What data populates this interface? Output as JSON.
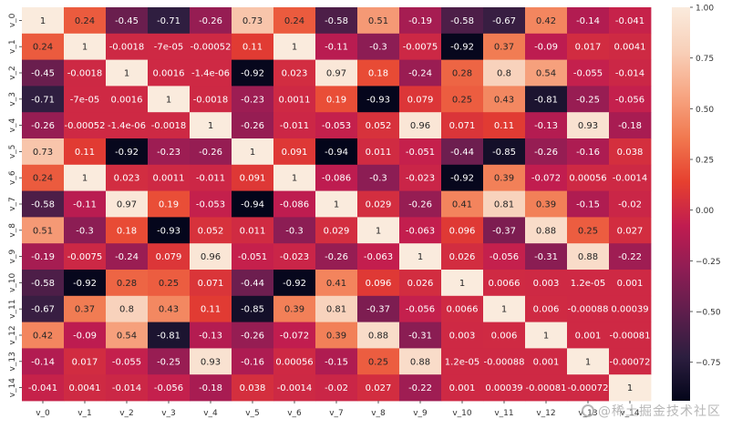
{
  "chart_data": {
    "type": "heatmap",
    "rows": [
      "v_0",
      "v_1",
      "v_2",
      "v_3",
      "v_4",
      "v_5",
      "v_6",
      "v_7",
      "v_8",
      "v_9",
      "v_10",
      "v_11",
      "v_12",
      "v_13",
      "v_14"
    ],
    "cols": [
      "v_0",
      "v_1",
      "v_2",
      "v_3",
      "v_4",
      "v_5",
      "v_6",
      "v_7",
      "v_8",
      "v_9",
      "v_10",
      "v_11",
      "v_12",
      "v_13",
      "v_14"
    ],
    "values": [
      [
        1,
        0.24,
        -0.45,
        -0.71,
        -0.26,
        0.73,
        0.24,
        -0.58,
        0.51,
        -0.19,
        -0.58,
        -0.67,
        0.42,
        -0.14,
        -0.041
      ],
      [
        0.24,
        1,
        -0.0018,
        -7e-05,
        -0.00052,
        0.11,
        1,
        -0.11,
        -0.3,
        -0.0075,
        -0.92,
        0.37,
        -0.09,
        0.017,
        0.0041
      ],
      [
        -0.45,
        -0.0018,
        1,
        0.0016,
        -1.4e-06,
        -0.92,
        0.023,
        0.97,
        0.18,
        -0.24,
        0.28,
        0.8,
        0.54,
        -0.055,
        -0.014
      ],
      [
        -0.71,
        -7e-05,
        0.0016,
        1,
        -0.0018,
        -0.23,
        0.0011,
        0.19,
        -0.93,
        0.079,
        0.25,
        0.43,
        -0.81,
        -0.25,
        -0.056
      ],
      [
        -0.26,
        -0.00052,
        -1.4e-06,
        -0.0018,
        1,
        -0.26,
        -0.011,
        -0.053,
        0.052,
        0.96,
        0.071,
        0.11,
        -0.13,
        0.93,
        -0.18
      ],
      [
        0.73,
        0.11,
        -0.92,
        -0.23,
        -0.26,
        1,
        0.091,
        -0.94,
        0.011,
        -0.051,
        -0.44,
        -0.85,
        -0.26,
        -0.16,
        0.038
      ],
      [
        0.24,
        1,
        0.023,
        0.0011,
        -0.011,
        0.091,
        1,
        -0.086,
        -0.3,
        -0.023,
        -0.92,
        0.39,
        -0.072,
        0.00056,
        -0.0014
      ],
      [
        -0.58,
        -0.11,
        0.97,
        0.19,
        -0.053,
        -0.94,
        -0.086,
        1,
        0.029,
        -0.26,
        0.41,
        0.81,
        0.39,
        -0.15,
        -0.02
      ],
      [
        0.51,
        -0.3,
        0.18,
        -0.93,
        0.052,
        0.011,
        -0.3,
        0.029,
        1,
        -0.063,
        0.096,
        -0.37,
        0.88,
        0.25,
        0.027
      ],
      [
        -0.19,
        -0.0075,
        -0.24,
        0.079,
        0.96,
        -0.051,
        -0.023,
        -0.26,
        -0.063,
        1,
        0.026,
        -0.056,
        -0.31,
        0.88,
        -0.22
      ],
      [
        -0.58,
        -0.92,
        0.28,
        0.25,
        0.071,
        -0.44,
        -0.92,
        0.41,
        0.096,
        0.026,
        1,
        0.0066,
        0.003,
        1.2e-05,
        0.001
      ],
      [
        -0.67,
        0.37,
        0.8,
        0.43,
        0.11,
        -0.85,
        0.39,
        0.81,
        -0.37,
        -0.056,
        0.0066,
        1,
        0.006,
        -0.00088,
        0.00039
      ],
      [
        0.42,
        -0.09,
        0.54,
        -0.81,
        -0.13,
        -0.26,
        -0.072,
        0.39,
        0.88,
        -0.31,
        0.003,
        0.006,
        1,
        0.001,
        -0.00081
      ],
      [
        -0.14,
        0.017,
        -0.055,
        -0.25,
        0.93,
        -0.16,
        0.00056,
        -0.15,
        0.25,
        0.88,
        1.2e-05,
        -0.00088,
        0.001,
        1,
        -0.00072
      ],
      [
        -0.041,
        0.0041,
        -0.014,
        -0.056,
        -0.18,
        0.038,
        -0.0014,
        -0.02,
        0.027,
        -0.22,
        0.001,
        0.00039,
        -0.00081,
        -0.00072,
        1
      ]
    ],
    "labels": [
      [
        "1",
        "0.24",
        "-0.45",
        "-0.71",
        "-0.26",
        "0.73",
        "0.24",
        "-0.58",
        "0.51",
        "-0.19",
        "-0.58",
        "-0.67",
        "0.42",
        "-0.14",
        "-0.041"
      ],
      [
        "0.24",
        "1",
        "-0.0018",
        "-7e-05",
        "-0.00052",
        "0.11",
        "1",
        "-0.11",
        "-0.3",
        "-0.0075",
        "-0.92",
        "0.37",
        "-0.09",
        "0.017",
        "0.0041"
      ],
      [
        "-0.45",
        "-0.0018",
        "1",
        "0.0016",
        "-1.4e-06",
        "-0.92",
        "0.023",
        "0.97",
        "0.18",
        "-0.24",
        "0.28",
        "0.8",
        "0.54",
        "-0.055",
        "-0.014"
      ],
      [
        "-0.71",
        "-7e-05",
        "0.0016",
        "1",
        "-0.0018",
        "-0.23",
        "0.0011",
        "0.19",
        "-0.93",
        "0.079",
        "0.25",
        "0.43",
        "-0.81",
        "-0.25",
        "-0.056"
      ],
      [
        "-0.26",
        "-0.00052",
        "-1.4e-06",
        "-0.0018",
        "1",
        "-0.26",
        "-0.011",
        "-0.053",
        "0.052",
        "0.96",
        "0.071",
        "0.11",
        "-0.13",
        "0.93",
        "-0.18"
      ],
      [
        "0.73",
        "0.11",
        "-0.92",
        "-0.23",
        "-0.26",
        "1",
        "0.091",
        "-0.94",
        "0.011",
        "-0.051",
        "-0.44",
        "-0.85",
        "-0.26",
        "-0.16",
        "0.038"
      ],
      [
        "0.24",
        "1",
        "0.023",
        "0.0011",
        "-0.011",
        "0.091",
        "1",
        "-0.086",
        "-0.3",
        "-0.023",
        "-0.92",
        "0.39",
        "-0.072",
        "0.00056",
        "-0.0014"
      ],
      [
        "-0.58",
        "-0.11",
        "0.97",
        "0.19",
        "-0.053",
        "-0.94",
        "-0.086",
        "1",
        "0.029",
        "-0.26",
        "0.41",
        "0.81",
        "0.39",
        "-0.15",
        "-0.02"
      ],
      [
        "0.51",
        "-0.3",
        "0.18",
        "-0.93",
        "0.052",
        "0.011",
        "-0.3",
        "0.029",
        "1",
        "-0.063",
        "0.096",
        "-0.37",
        "0.88",
        "0.25",
        "0.027"
      ],
      [
        "-0.19",
        "-0.0075",
        "-0.24",
        "0.079",
        "0.96",
        "-0.051",
        "-0.023",
        "-0.26",
        "-0.063",
        "1",
        "0.026",
        "-0.056",
        "-0.31",
        "0.88",
        "-0.22"
      ],
      [
        "-0.58",
        "-0.92",
        "0.28",
        "0.25",
        "0.071",
        "-0.44",
        "-0.92",
        "0.41",
        "0.096",
        "0.026",
        "1",
        "0.0066",
        "0.003",
        "1.2e-05",
        "0.001"
      ],
      [
        "-0.67",
        "0.37",
        "0.8",
        "0.43",
        "0.11",
        "-0.85",
        "0.39",
        "0.81",
        "-0.37",
        "-0.056",
        "0.0066",
        "1",
        "0.006",
        "-0.00088",
        "0.00039"
      ],
      [
        "0.42",
        "-0.09",
        "0.54",
        "-0.81",
        "-0.13",
        "-0.26",
        "-0.072",
        "0.39",
        "0.88",
        "-0.31",
        "0.003",
        "0.006",
        "1",
        "0.001",
        "-0.00081"
      ],
      [
        "-0.14",
        "0.017",
        "-0.055",
        "-0.25",
        "0.93",
        "-0.16",
        "0.00056",
        "-0.15",
        "0.25",
        "0.88",
        "1.2e-05",
        "-0.00088",
        "0.001",
        "1",
        "-0.00072"
      ],
      [
        "-0.041",
        "0.0041",
        "-0.014",
        "-0.056",
        "-0.18",
        "0.038",
        "-0.0014",
        "-0.02",
        "0.027",
        "-0.22",
        "0.001",
        "0.00039",
        "-0.00081",
        "-0.00072",
        "1"
      ]
    ],
    "colorbar": {
      "range": [
        -0.94,
        1.0
      ],
      "ticks": [
        1.0,
        0.75,
        0.5,
        0.25,
        0.0,
        -0.25,
        -0.5,
        -0.75
      ],
      "tick_labels": [
        "1.00",
        "0.75",
        "0.50",
        "0.25",
        "0.00",
        "−0.25",
        "−0.50",
        "−0.75"
      ]
    },
    "colormap": "rocket",
    "colormap_stops": [
      "#03051a",
      "#2c1e3f",
      "#5d1e4c",
      "#8e1d54",
      "#c01c50",
      "#e6402f",
      "#f1784f",
      "#f7a683",
      "#f8d0b9",
      "#faebdd"
    ],
    "title": "",
    "xlabel": "",
    "ylabel": ""
  },
  "watermark": "@稀土掘金技术社区"
}
